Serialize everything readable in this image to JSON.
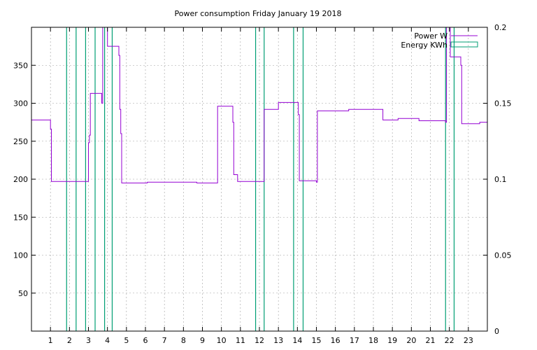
{
  "chart_data": {
    "type": "line",
    "title": "Power consumption Friday January 19 2018",
    "xlim": [
      0,
      24
    ],
    "ylim": [
      0,
      400
    ],
    "y2lim": [
      0,
      0.2
    ],
    "x_ticks": [
      1,
      2,
      3,
      4,
      5,
      6,
      7,
      8,
      9,
      10,
      11,
      12,
      13,
      14,
      15,
      16,
      17,
      18,
      19,
      20,
      21,
      22,
      23
    ],
    "y_ticks": [
      50,
      100,
      150,
      200,
      250,
      300,
      350
    ],
    "y2_ticks": [
      "0",
      "0.05",
      "0.1",
      "0.15",
      "0.2"
    ],
    "y2_tick_values": [
      0,
      0.05,
      0.1,
      0.15,
      0.2
    ],
    "grid": true,
    "legend_position": "top-right",
    "colors": {
      "power": "#9400d3",
      "energy": "#009e73"
    },
    "series": [
      {
        "name": "Power W",
        "axis": "y",
        "style": "step",
        "points": [
          [
            0,
            278
          ],
          [
            1,
            278
          ],
          [
            1,
            266
          ],
          [
            1.05,
            266
          ],
          [
            1.05,
            197
          ],
          [
            2,
            197
          ],
          [
            3,
            197
          ],
          [
            3,
            248
          ],
          [
            3.05,
            248
          ],
          [
            3.05,
            258
          ],
          [
            3.1,
            258
          ],
          [
            3.1,
            313
          ],
          [
            3.7,
            313
          ],
          [
            3.7,
            300
          ],
          [
            3.75,
            300
          ],
          [
            3.75,
            400
          ],
          [
            4.0,
            400
          ],
          [
            4.0,
            375
          ],
          [
            4.6,
            375
          ],
          [
            4.6,
            363
          ],
          [
            4.65,
            363
          ],
          [
            4.65,
            292
          ],
          [
            4.7,
            292
          ],
          [
            4.7,
            260
          ],
          [
            4.75,
            260
          ],
          [
            4.75,
            195
          ],
          [
            5.5,
            195
          ],
          [
            6.1,
            195
          ],
          [
            6.1,
            196
          ],
          [
            8.7,
            196
          ],
          [
            8.7,
            195
          ],
          [
            9.8,
            195
          ],
          [
            9.8,
            296
          ],
          [
            10.6,
            296
          ],
          [
            10.6,
            275
          ],
          [
            10.65,
            275
          ],
          [
            10.65,
            206
          ],
          [
            10.85,
            206
          ],
          [
            10.85,
            197
          ],
          [
            12.25,
            197
          ],
          [
            12.25,
            292
          ],
          [
            13,
            292
          ],
          [
            13,
            301
          ],
          [
            14.05,
            301
          ],
          [
            14.05,
            285
          ],
          [
            14.1,
            285
          ],
          [
            14.1,
            198
          ],
          [
            15,
            198
          ],
          [
            15,
            196
          ],
          [
            15.05,
            196
          ],
          [
            15.05,
            290
          ],
          [
            16.7,
            290
          ],
          [
            16.7,
            292
          ],
          [
            18.5,
            292
          ],
          [
            18.5,
            278
          ],
          [
            19.3,
            278
          ],
          [
            19.3,
            280
          ],
          [
            20.4,
            280
          ],
          [
            20.4,
            277
          ],
          [
            21.8,
            277
          ],
          [
            21.8,
            275
          ],
          [
            21.85,
            275
          ],
          [
            21.85,
            400
          ],
          [
            22.05,
            400
          ],
          [
            22.05,
            361
          ],
          [
            22.6,
            361
          ],
          [
            22.6,
            350
          ],
          [
            22.65,
            350
          ],
          [
            22.65,
            273
          ],
          [
            23.6,
            273
          ],
          [
            23.6,
            275
          ],
          [
            24,
            275
          ]
        ]
      },
      {
        "name": "Energy KWh",
        "axis": "y2",
        "style": "impulses",
        "x": [
          1.85,
          2.35,
          2.85,
          3.35,
          3.85,
          4.25,
          11.8,
          12.25,
          13.8,
          14.3,
          21.8,
          22.25
        ],
        "values": [
          0.2,
          0.2,
          0.2,
          0.2,
          0.2,
          0.2,
          0.2,
          0.2,
          0.2,
          0.2,
          0.2,
          0.2
        ]
      }
    ]
  }
}
